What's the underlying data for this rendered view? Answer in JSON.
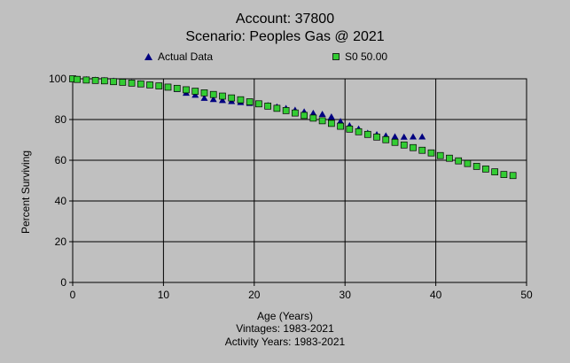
{
  "chart_data": {
    "type": "scatter",
    "title": "Account: 37800",
    "subtitle": "Scenario: Peoples Gas @ 2021",
    "xlabel": "Age (Years)",
    "ylabel": "Percent Surviving",
    "footnotes": [
      "Vintages: 1983-2021",
      "Activity Years: 1983-2021"
    ],
    "xlim": [
      0,
      50
    ],
    "ylim": [
      0,
      100
    ],
    "xticks": [
      0,
      10,
      20,
      30,
      40,
      50
    ],
    "yticks": [
      0,
      20,
      40,
      60,
      80,
      100
    ],
    "grid": true,
    "legend_placement": "top",
    "series": [
      {
        "name": "Actual Data",
        "marker": "triangle",
        "color": "#000080",
        "x": [
          0,
          0.5,
          1.5,
          2.5,
          3.5,
          4.5,
          5.5,
          6.5,
          7.5,
          8.5,
          9.5,
          10.5,
          11.5,
          12.5,
          13.5,
          14.5,
          15.5,
          16.5,
          17.5,
          18.5,
          19.5,
          20.5,
          21.5,
          22.5,
          23.5,
          24.5,
          25.5,
          26.5,
          27.5,
          28.5,
          29.5,
          30.5,
          31.5,
          32.5,
          33.5,
          34.5,
          35.5,
          36.5,
          37.5,
          38.5
        ],
        "y": [
          100,
          99.8,
          99.6,
          99.4,
          99.2,
          98.9,
          98.5,
          98.1,
          97.6,
          97.1,
          96.5,
          95.8,
          94.9,
          93.0,
          92.0,
          90.5,
          89.9,
          89.4,
          88.9,
          88.4,
          88.0,
          87.5,
          86.9,
          86.2,
          85.5,
          84.6,
          83.8,
          83.1,
          82.6,
          81.3,
          79.1,
          77.0,
          75.4,
          73.3,
          72.6,
          72.0,
          71.6,
          71.4,
          71.5,
          71.5
        ]
      },
      {
        "name": "S0 50.00",
        "marker": "square",
        "color": "#33cc33",
        "x": [
          0,
          0.5,
          1.5,
          2.5,
          3.5,
          4.5,
          5.5,
          6.5,
          7.5,
          8.5,
          9.5,
          10.5,
          11.5,
          12.5,
          13.5,
          14.5,
          15.5,
          16.5,
          17.5,
          18.5,
          19.5,
          20.5,
          21.5,
          22.5,
          23.5,
          24.5,
          25.5,
          26.5,
          27.5,
          28.5,
          29.5,
          30.5,
          31.5,
          32.5,
          33.5,
          34.5,
          35.5,
          36.5,
          37.5,
          38.5,
          39.5,
          40.5,
          41.5,
          42.5,
          43.5,
          44.5,
          45.5,
          46.5,
          47.5,
          48.5
        ],
        "y": [
          100,
          99.7,
          99.4,
          99.2,
          99.0,
          98.6,
          98.3,
          97.9,
          97.5,
          97.0,
          96.5,
          95.9,
          95.3,
          94.6,
          93.9,
          93.1,
          92.3,
          91.5,
          90.6,
          89.7,
          88.7,
          87.7,
          86.6,
          85.5,
          84.4,
          83.2,
          82.0,
          80.7,
          79.4,
          78.1,
          76.7,
          75.3,
          74.0,
          72.7,
          71.4,
          70.1,
          68.8,
          67.5,
          66.2,
          64.9,
          63.6,
          62.3,
          61.0,
          59.7,
          58.4,
          57.0,
          55.7,
          54.3,
          53.0,
          52.5
        ]
      }
    ]
  }
}
